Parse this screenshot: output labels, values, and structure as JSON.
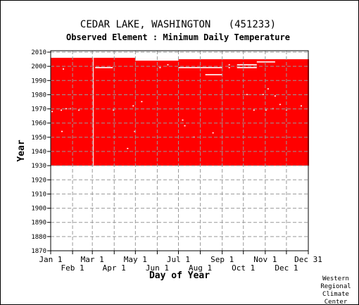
{
  "header": {
    "title": "CEDAR LAKE, WASHINGTON   (451233)",
    "subtitle": "Observed Element : Minimum Daily Temperature"
  },
  "footer": {
    "credit_lines": [
      "Western",
      "Regional",
      "Climate",
      "Center"
    ]
  },
  "colors": {
    "data_fill": "#ff0000",
    "missing_gap": "#ffffff",
    "grid": "#999999",
    "axis": "#000000"
  },
  "chart_data": {
    "type": "heatmap",
    "description_of_encoding": "red = day/year with observation present; white = missing",
    "xlabel": "Day of Year",
    "ylabel": "Year",
    "x_range_days": [
      1,
      366
    ],
    "ylim": [
      1870,
      2011
    ],
    "grid": true,
    "x_ticks_top_row": [
      {
        "label": "Jan 1",
        "day": 1
      },
      {
        "label": "Mar 1",
        "day": 60
      },
      {
        "label": "May 1",
        "day": 121
      },
      {
        "label": "Jul 1",
        "day": 182
      },
      {
        "label": "Sep 1",
        "day": 244
      },
      {
        "label": "Nov 1",
        "day": 305
      },
      {
        "label": "Dec 31",
        "day": 366
      }
    ],
    "x_ticks_bottom_row": [
      {
        "label": "Feb 1",
        "day": 32
      },
      {
        "label": "Apr 1",
        "day": 91
      },
      {
        "label": "Jun 1",
        "day": 152
      },
      {
        "label": "Aug 1",
        "day": 213
      },
      {
        "label": "Oct 1",
        "day": 274
      },
      {
        "label": "Dec 1",
        "day": 335
      }
    ],
    "y_ticks": [
      2010,
      2000,
      1990,
      1980,
      1970,
      1960,
      1950,
      1940,
      1930,
      1920,
      1910,
      1900,
      1890,
      1880,
      1870
    ],
    "record_blocks": [
      {
        "day_start": 1,
        "day_end": 60,
        "year_start": 1930,
        "year_end": 2006
      },
      {
        "day_start": 60,
        "day_end": 121,
        "year_start": 1930,
        "year_end": 2006
      },
      {
        "day_start": 60,
        "day_end": 61,
        "year_start": 2005,
        "year_end": 2006
      },
      {
        "day_start": 121,
        "day_end": 182,
        "year_start": 1930,
        "year_end": 2004
      },
      {
        "day_start": 182,
        "day_end": 213,
        "year_start": 1930,
        "year_end": 2005
      },
      {
        "day_start": 213,
        "day_end": 244,
        "year_start": 1930,
        "year_end": 2005
      },
      {
        "day_start": 244,
        "day_end": 367,
        "year_start": 1930,
        "year_end": 2005
      }
    ],
    "missing_segments": [
      {
        "day_start": 61,
        "day_end": 62,
        "year_start": 1930,
        "year_end": 2006
      },
      {
        "day_start": 64,
        "day_end": 89,
        "year": 1999
      },
      {
        "day_start": 182,
        "day_end": 244,
        "year": 1999
      },
      {
        "day_start": 220,
        "day_end": 244,
        "year": 1994
      },
      {
        "day_start": 265,
        "day_end": 293,
        "year": 2001
      },
      {
        "day_start": 265,
        "day_end": 293,
        "year": 1999
      },
      {
        "day_start": 293,
        "day_end": 319,
        "year": 2003
      },
      {
        "day_start": 253,
        "day_end": 255,
        "year": 2001
      },
      {
        "day_start": 253,
        "day_end": 255,
        "year": 1999
      },
      {
        "day_start": 155,
        "day_end": 157,
        "year": 1999
      },
      {
        "day_start": 166,
        "day_end": 168,
        "year": 2001
      },
      {
        "day_start": 18,
        "day_end": 20,
        "year": 1998
      },
      {
        "day_start": 22,
        "day_end": 24,
        "year": 1970
      },
      {
        "day_start": 15,
        "day_end": 17,
        "year": 1969
      },
      {
        "day_start": 28,
        "day_end": 30,
        "year": 1970
      },
      {
        "day_start": 40,
        "day_end": 42,
        "year": 1969
      },
      {
        "day_start": 2,
        "day_end": 4,
        "year": 1968
      },
      {
        "day_start": 16,
        "day_end": 18,
        "year": 1954
      },
      {
        "day_start": 89,
        "day_end": 91,
        "year": 1969
      },
      {
        "day_start": 117,
        "day_end": 119,
        "year": 1972
      },
      {
        "day_start": 129,
        "day_end": 131,
        "year": 1975
      },
      {
        "day_start": 119,
        "day_end": 121,
        "year": 1954
      },
      {
        "day_start": 109,
        "day_end": 111,
        "year": 1942
      },
      {
        "day_start": 187,
        "day_end": 189,
        "year": 1962
      },
      {
        "day_start": 190,
        "day_end": 192,
        "year": 1958
      },
      {
        "day_start": 203,
        "day_end": 205,
        "year": 1950
      },
      {
        "day_start": 230,
        "day_end": 232,
        "year": 1953
      },
      {
        "day_start": 278,
        "day_end": 280,
        "year": 1980
      },
      {
        "day_start": 288,
        "day_end": 290,
        "year": 1969
      },
      {
        "day_start": 301,
        "day_end": 303,
        "year": 1980
      },
      {
        "day_start": 305,
        "day_end": 307,
        "year": 1969
      },
      {
        "day_start": 315,
        "day_end": 317,
        "year": 1970
      },
      {
        "day_start": 318,
        "day_end": 320,
        "year": 1979
      },
      {
        "day_start": 308,
        "day_end": 310,
        "year": 1984
      },
      {
        "day_start": 334,
        "day_end": 336,
        "year": 1969
      },
      {
        "day_start": 355,
        "day_end": 357,
        "year": 1972
      },
      {
        "day_start": 325,
        "day_end": 327,
        "year": 1973
      }
    ]
  }
}
